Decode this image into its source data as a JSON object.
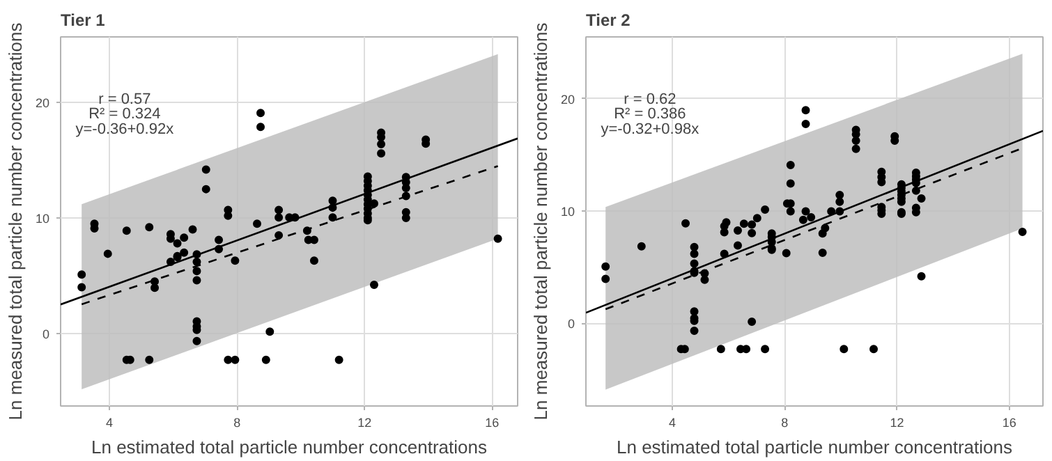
{
  "chart_data": [
    {
      "type": "scatter",
      "title": "Tier 1",
      "xlabel": "Ln estimated total particle number concentrations",
      "ylabel": "Ln measured total particle number concentrations",
      "xlim": [
        2.47,
        16.8
      ],
      "ylim": [
        -6.3,
        25.7
      ],
      "xticks": [
        4,
        8,
        12,
        16
      ],
      "yticks": [
        0,
        10,
        20
      ],
      "grid": true,
      "annotations": [
        "r = 0.57",
        "R² = 0.324",
        "y=-0.36+0.92x"
      ],
      "series": [
        {
          "marker": "circle",
          "color": "#000000",
          "x": [
            3.13,
            3.13,
            3.53,
            3.53,
            3.95,
            4.54,
            4.54,
            4.65,
            5.25,
            5.25,
            5.42,
            5.42,
            5.92,
            5.92,
            5.92,
            6.13,
            6.13,
            6.13,
            6.34,
            6.34,
            6.61,
            6.74,
            6.74,
            6.74,
            6.74,
            6.74,
            6.74,
            6.74,
            6.74,
            7.03,
            7.03,
            7.43,
            7.43,
            7.72,
            7.72,
            7.72,
            7.94,
            7.94,
            8.63,
            8.74,
            8.74,
            8.91,
            9.03,
            9.31,
            9.31,
            9.31,
            9.64,
            9.82,
            10.2,
            10.24,
            10.42,
            10.42,
            11.0,
            11.0,
            11.0,
            11.2,
            12.1,
            12.1,
            12.1,
            12.1,
            12.1,
            12.1,
            12.1,
            12.1,
            12.1,
            12.1,
            12.1,
            12.3,
            12.3,
            12.52,
            12.52,
            12.52,
            12.52,
            13.3,
            13.3,
            13.3,
            13.3,
            13.3,
            13.3,
            13.92,
            13.92,
            16.18
          ],
          "values": [
            5.1,
            4.0,
            9.5,
            9.1,
            6.9,
            8.9,
            -2.3,
            -2.3,
            9.2,
            -2.3,
            4.5,
            3.95,
            8.6,
            8.2,
            6.2,
            7.8,
            6.7,
            6.6,
            8.3,
            7.0,
            9.0,
            6.85,
            6.2,
            5.4,
            4.6,
            1.04,
            0.6,
            0.3,
            -0.67,
            14.2,
            12.5,
            8.1,
            7.3,
            10.7,
            10.2,
            -2.3,
            6.3,
            -2.3,
            9.5,
            19.1,
            17.9,
            -2.3,
            0.15,
            10.7,
            10.05,
            8.5,
            10.05,
            10.05,
            8.9,
            8.1,
            8.1,
            6.3,
            11.5,
            10.9,
            10.05,
            -2.3,
            13.6,
            13.2,
            12.8,
            12.4,
            12.0,
            11.6,
            11.2,
            10.8,
            10.4,
            10.0,
            9.8,
            11.25,
            4.2,
            17.4,
            17.0,
            16.4,
            15.6,
            13.55,
            13.1,
            12.6,
            11.9,
            10.5,
            10.0,
            16.8,
            16.45,
            8.2
          ]
        },
        {
          "type": "line",
          "line_style": "solid",
          "color": "#000000",
          "x": [
            2.47,
            16.8
          ],
          "values": [
            2.5,
            16.9
          ]
        },
        {
          "type": "line",
          "line_style": "dashed",
          "color": "#000000",
          "x": [
            3.13,
            16.18
          ],
          "values": [
            2.52,
            14.5
          ],
          "lower": [
            -4.85,
            8.2
          ],
          "upper": [
            11.2,
            24.2
          ]
        }
      ]
    },
    {
      "type": "scatter",
      "title": "Tier 2",
      "xlabel": "Ln estimated total particle number concentrations",
      "ylabel": "Ln measured total particle number concentrations",
      "xlim": [
        0.92,
        17.2
      ],
      "ylim": [
        -7.35,
        25.5
      ],
      "xticks": [
        4,
        8,
        12,
        16
      ],
      "yticks": [
        0,
        10,
        20
      ],
      "grid": true,
      "annotations": [
        "r = 0.62",
        "R² = 0.386",
        "y=-0.32+0.98x"
      ],
      "series": [
        {
          "marker": "circle",
          "color": "#000000",
          "x": [
            1.62,
            1.62,
            2.9,
            4.31,
            4.44,
            4.47,
            4.78,
            4.78,
            4.78,
            4.78,
            4.78,
            4.78,
            4.78,
            4.78,
            4.78,
            5.15,
            5.15,
            5.73,
            5.85,
            5.85,
            5.85,
            5.92,
            6.33,
            6.33,
            6.43,
            6.63,
            6.55,
            6.83,
            6.83,
            6.83,
            7.02,
            7.3,
            7.3,
            7.54,
            7.54,
            7.54,
            7.54,
            7.54,
            8.06,
            8.09,
            8.21,
            8.21,
            8.21,
            8.21,
            8.75,
            8.75,
            8.66,
            8.75,
            8.94,
            9.35,
            9.44,
            9.35,
            9.66,
            9.96,
            9.96,
            9.96,
            10.11,
            10.54,
            10.54,
            10.54,
            10.54,
            11.17,
            11.45,
            11.45,
            11.45,
            11.45,
            11.45,
            11.45,
            11.92,
            11.92,
            12.16,
            12.16,
            12.16,
            12.16,
            12.16,
            12.16,
            12.16,
            12.16,
            12.68,
            12.68,
            12.68,
            12.68,
            12.68,
            12.68,
            12.68,
            12.87,
            12.87,
            16.47
          ],
          "values": [
            5.06,
            3.96,
            6.86,
            -2.29,
            -2.29,
            8.9,
            6.8,
            6.2,
            5.33,
            4.65,
            4.5,
            1.07,
            0.46,
            0.23,
            -0.65,
            4.46,
            3.89,
            -2.29,
            8.65,
            8.11,
            6.2,
            9.0,
            8.27,
            6.93,
            -2.29,
            -2.29,
            8.88,
            8.8,
            8.04,
            0.15,
            9.37,
            10.13,
            -2.29,
            8.0,
            7.7,
            7.24,
            6.67,
            6.55,
            6.25,
            10.67,
            10.67,
            14.1,
            12.46,
            9.98,
            18.97,
            17.75,
            9.22,
            9.98,
            9.45,
            8.0,
            8.49,
            6.29,
            9.98,
            11.43,
            10.82,
            9.98,
            -2.29,
            17.22,
            16.83,
            16.27,
            15.54,
            -2.29,
            13.49,
            13.03,
            12.57,
            10.36,
            10.06,
            9.75,
            16.65,
            16.27,
            12.38,
            12.07,
            11.76,
            11.43,
            11.12,
            10.82,
            9.9,
            9.75,
            13.41,
            13.1,
            12.8,
            12.5,
            11.81,
            10.29,
            9.9,
            11.12,
            4.19,
            8.15
          ]
        },
        {
          "type": "line",
          "line_style": "solid",
          "color": "#000000",
          "x": [
            0.92,
            17.2
          ],
          "values": [
            0.95,
            17.14
          ]
        },
        {
          "type": "line",
          "line_style": "dashed",
          "color": "#000000",
          "x": [
            1.62,
            16.47
          ],
          "values": [
            1.26,
            15.6
          ],
          "lower": [
            -5.9,
            8.46
          ],
          "upper": [
            10.36,
            24.0
          ]
        }
      ]
    }
  ]
}
